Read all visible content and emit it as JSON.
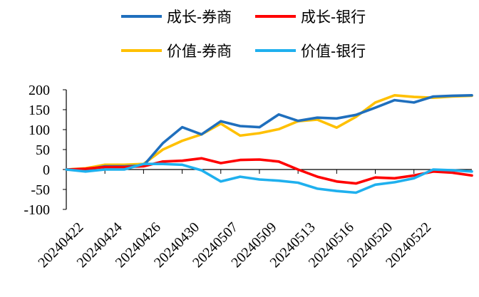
{
  "chart_data": {
    "type": "line",
    "title": "",
    "xlabel": "",
    "ylabel": "",
    "ylim": [
      -100,
      200
    ],
    "yticks": [
      200,
      150,
      100,
      50,
      0,
      -50,
      -100
    ],
    "x_tick_labels": [
      "20240422",
      "20240424",
      "20240426",
      "20240430",
      "20240507",
      "20240509",
      "20240513",
      "20240516",
      "20240520",
      "20240522"
    ],
    "x": [
      "20240422",
      "20240423",
      "20240424",
      "20240425",
      "20240426",
      "20240429",
      "20240430",
      "20240506",
      "20240507",
      "20240508",
      "20240509",
      "20240510",
      "20240513",
      "20240514",
      "20240515",
      "20240516",
      "20240517",
      "20240520",
      "20240521",
      "20240522",
      "20240523",
      "20240524"
    ],
    "legend_position": "top",
    "grid": false,
    "series": [
      {
        "name": "成长-券商",
        "color": "#1f6fbd",
        "values": [
          0,
          0,
          8,
          8,
          10,
          66,
          106,
          88,
          121,
          109,
          106,
          138,
          122,
          130,
          128,
          137,
          155,
          174,
          168,
          183,
          185,
          186
        ]
      },
      {
        "name": "成长-银行",
        "color": "#ff0000",
        "values": [
          0,
          2,
          6,
          6,
          8,
          20,
          22,
          28,
          16,
          24,
          25,
          20,
          0,
          -18,
          -30,
          -35,
          -20,
          -22,
          -15,
          -5,
          -8,
          -15
        ]
      },
      {
        "name": "价值-券商",
        "color": "#ffc000",
        "values": [
          0,
          3,
          12,
          12,
          14,
          50,
          72,
          88,
          115,
          85,
          91,
          101,
          121,
          125,
          105,
          132,
          168,
          186,
          182,
          180,
          183,
          185
        ]
      },
      {
        "name": "价值-银行",
        "color": "#1fb0ee",
        "values": [
          0,
          -5,
          0,
          0,
          14,
          14,
          12,
          -2,
          -30,
          -18,
          -25,
          -28,
          -33,
          -48,
          -54,
          -58,
          -38,
          -32,
          -22,
          0,
          -2,
          -5
        ]
      }
    ]
  }
}
